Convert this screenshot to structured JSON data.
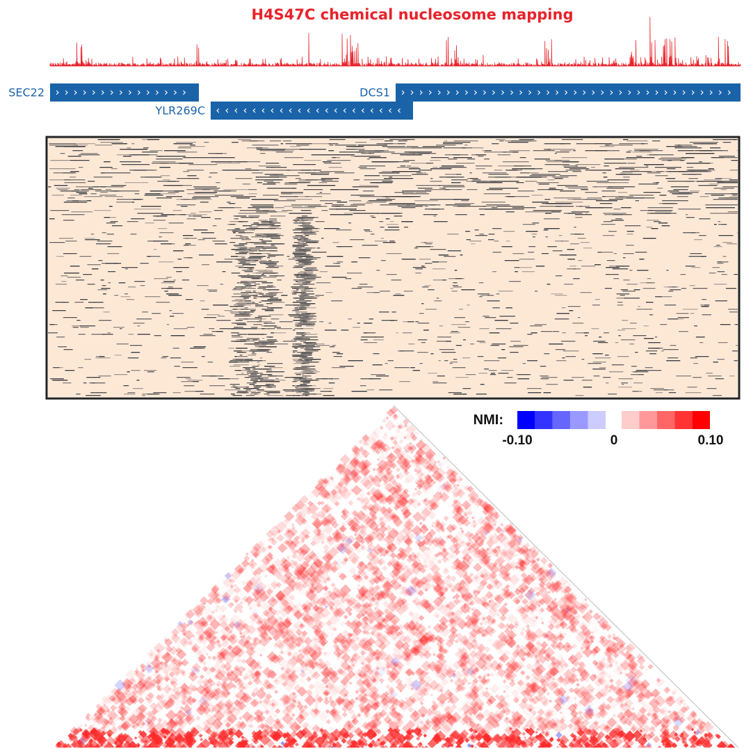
{
  "title": "H4S47C chemical nucleosome mapping",
  "genes": [
    {
      "label": "SEC22",
      "strand": "+"
    },
    {
      "label": "DCS1",
      "strand": "+"
    },
    {
      "label": "YLR269C",
      "strand": "-"
    }
  ],
  "legend": {
    "label": "NMI:",
    "colors": [
      "#0000ff",
      "#3333ff",
      "#6666ff",
      "#9999ff",
      "#ccccff",
      "#ffcccc",
      "#ff9999",
      "#ff6666",
      "#ff3333",
      "#ff0000"
    ],
    "range": [
      -0.1,
      0.1
    ],
    "ticks": [
      {
        "value": -0.1,
        "label": "-0.10"
      },
      {
        "value": 0,
        "label": "0"
      },
      {
        "value": 0.1,
        "label": "0.10"
      }
    ]
  }
}
